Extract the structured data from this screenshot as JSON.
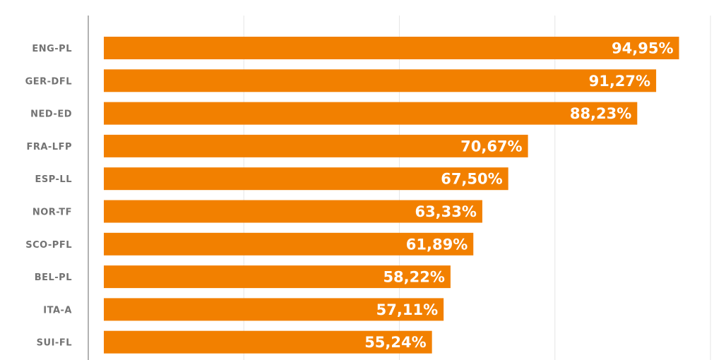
{
  "chart_data": {
    "type": "bar",
    "orientation": "horizontal",
    "categories": [
      "ENG-PL",
      "GER-DFL",
      "NED-ED",
      "FRA-LFP",
      "ESP-LL",
      "NOR-TF",
      "SCO-PFL",
      "BEL-PL",
      "ITA-A",
      "SUI-FL"
    ],
    "values": [
      94.95,
      91.27,
      88.23,
      70.67,
      67.5,
      63.33,
      61.89,
      58.22,
      57.11,
      55.24
    ],
    "data_labels": [
      "94,95%",
      "91,27%",
      "88,23%",
      "70,67%",
      "67,50%",
      "63,33%",
      "61,89%",
      "58,22%",
      "57,11%",
      "55,24%"
    ],
    "title": "",
    "xlabel": "",
    "ylabel": "",
    "xlim": [
      0,
      100
    ],
    "grid": true,
    "gridline_values": [
      25,
      50,
      75,
      100
    ],
    "colors": {
      "bar": "#F28000",
      "label": "#737373",
      "grid": "#e6e6e6",
      "axis": "#999999"
    }
  }
}
